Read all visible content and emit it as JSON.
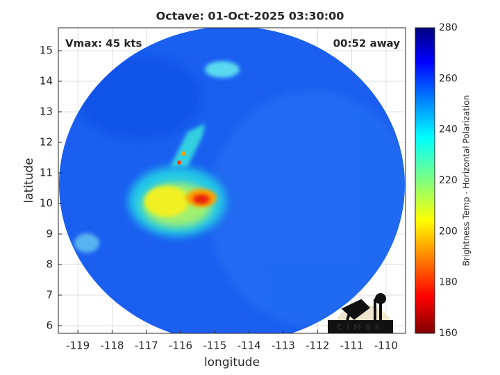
{
  "chart_data": {
    "type": "image",
    "title": "Octave: 01-Oct-2025 03:30:00",
    "annotations": [
      "Vmax: 45 kts",
      "00:52 away"
    ],
    "logo": "CIMSS",
    "xlabel": "longitude",
    "ylabel": "latitude",
    "xlim": [
      -119.57,
      -109.43
    ],
    "xticks": [
      -119,
      -118,
      -117,
      -116,
      -115,
      -114,
      -113,
      -112,
      -111,
      -110
    ],
    "ylim": [
      5.75,
      15.75
    ],
    "yticks": [
      6,
      7,
      8,
      9,
      10,
      11,
      12,
      13,
      14,
      15
    ],
    "grid": true,
    "colorbar": {
      "label": "Brightness Temp - Horizontal Polarization",
      "clim": [
        160,
        280
      ],
      "ticks": [
        160,
        180,
        200,
        220,
        240,
        260,
        280
      ],
      "colormap": "jet_r"
    }
  }
}
